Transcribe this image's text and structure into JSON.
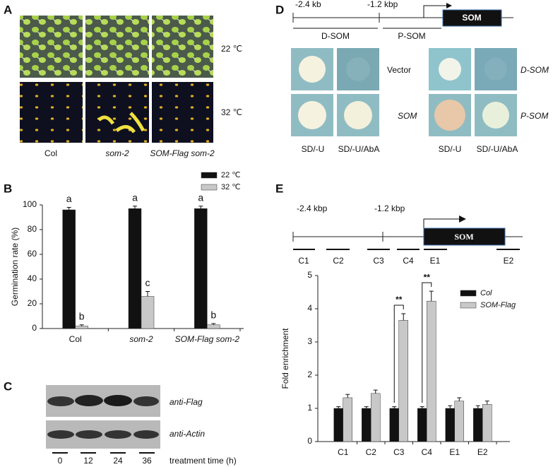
{
  "panels": {
    "a": "A",
    "b": "B",
    "c": "C",
    "d": "D",
    "e": "E"
  },
  "panel_a": {
    "temps": [
      "22 ℃",
      "32 ℃"
    ],
    "genotypes": [
      "Col",
      "som-2",
      "SOM-Flag som-2"
    ]
  },
  "panel_c": {
    "antibodies": [
      "anti-Flag",
      "anti-Actin"
    ],
    "times": [
      "0",
      "12",
      "24",
      "36"
    ],
    "time_label": "treatment time (h)"
  },
  "panel_d": {
    "start": "-2.4 kb",
    "mid": "-1.2 kbp",
    "gene": "SOM",
    "fragments": [
      "D-SOM",
      "P-SOM"
    ],
    "rows_left": [
      "Vector",
      "SOM"
    ],
    "rows_right": [
      "D-SOM",
      "P-SOM"
    ],
    "media": [
      "SD/-U",
      "SD/-U/AbA",
      "SD/-U",
      "SD/-U/AbA"
    ]
  },
  "panel_e_map": {
    "start": "-2.4 kbp",
    "mid": "-1.2 kbp",
    "gene": "SOM",
    "regions": [
      "C1",
      "C2",
      "C3",
      "C4",
      "E1",
      "E2"
    ]
  },
  "chart_data": [
    {
      "type": "bar",
      "y_label": "Germination rate (%)",
      "categories": [
        "Col",
        "som-2",
        "SOM-Flag som-2"
      ],
      "category_italic": [
        false,
        true,
        true
      ],
      "series": [
        {
          "name": "22 ℃",
          "color": "#111111",
          "values": [
            96,
            97,
            97
          ],
          "errors": [
            2,
            2,
            2
          ],
          "letters": [
            "a",
            "a",
            "a"
          ]
        },
        {
          "name": "32 ℃",
          "color": "#c8c8c8",
          "values": [
            2,
            26,
            3
          ],
          "errors": [
            1,
            4,
            1
          ],
          "letters": [
            "b",
            "c",
            "b"
          ]
        }
      ],
      "ylim": [
        0,
        100
      ],
      "yticks": [
        0,
        20,
        40,
        60,
        80,
        100
      ],
      "legend": "upper right",
      "legend_italic": false
    },
    {
      "type": "bar",
      "y_label": "Fold enrichment",
      "categories": [
        "C1",
        "C2",
        "C3",
        "C4",
        "E1",
        "E2"
      ],
      "category_italic": [
        false,
        false,
        false,
        false,
        false,
        false
      ],
      "series": [
        {
          "name": "Col",
          "color": "#111111",
          "values": [
            1,
            1,
            1,
            1,
            1,
            1
          ],
          "errors": [
            0.05,
            0.05,
            0.05,
            0.05,
            0.08,
            0.08
          ]
        },
        {
          "name": "SOM-Flag",
          "color": "#c8c8c8",
          "values": [
            1.32,
            1.45,
            3.65,
            4.23,
            1.22,
            1.12
          ],
          "errors": [
            0.1,
            0.1,
            0.2,
            0.3,
            0.1,
            0.1
          ]
        }
      ],
      "annotations": [
        {
          "text": "**",
          "category": "C3"
        },
        {
          "text": "**",
          "category": "C4"
        }
      ],
      "ylim": [
        0,
        5
      ],
      "yticks": [
        0,
        1,
        2,
        3,
        4,
        5
      ],
      "legend": "upper right",
      "legend_italic": true
    }
  ]
}
